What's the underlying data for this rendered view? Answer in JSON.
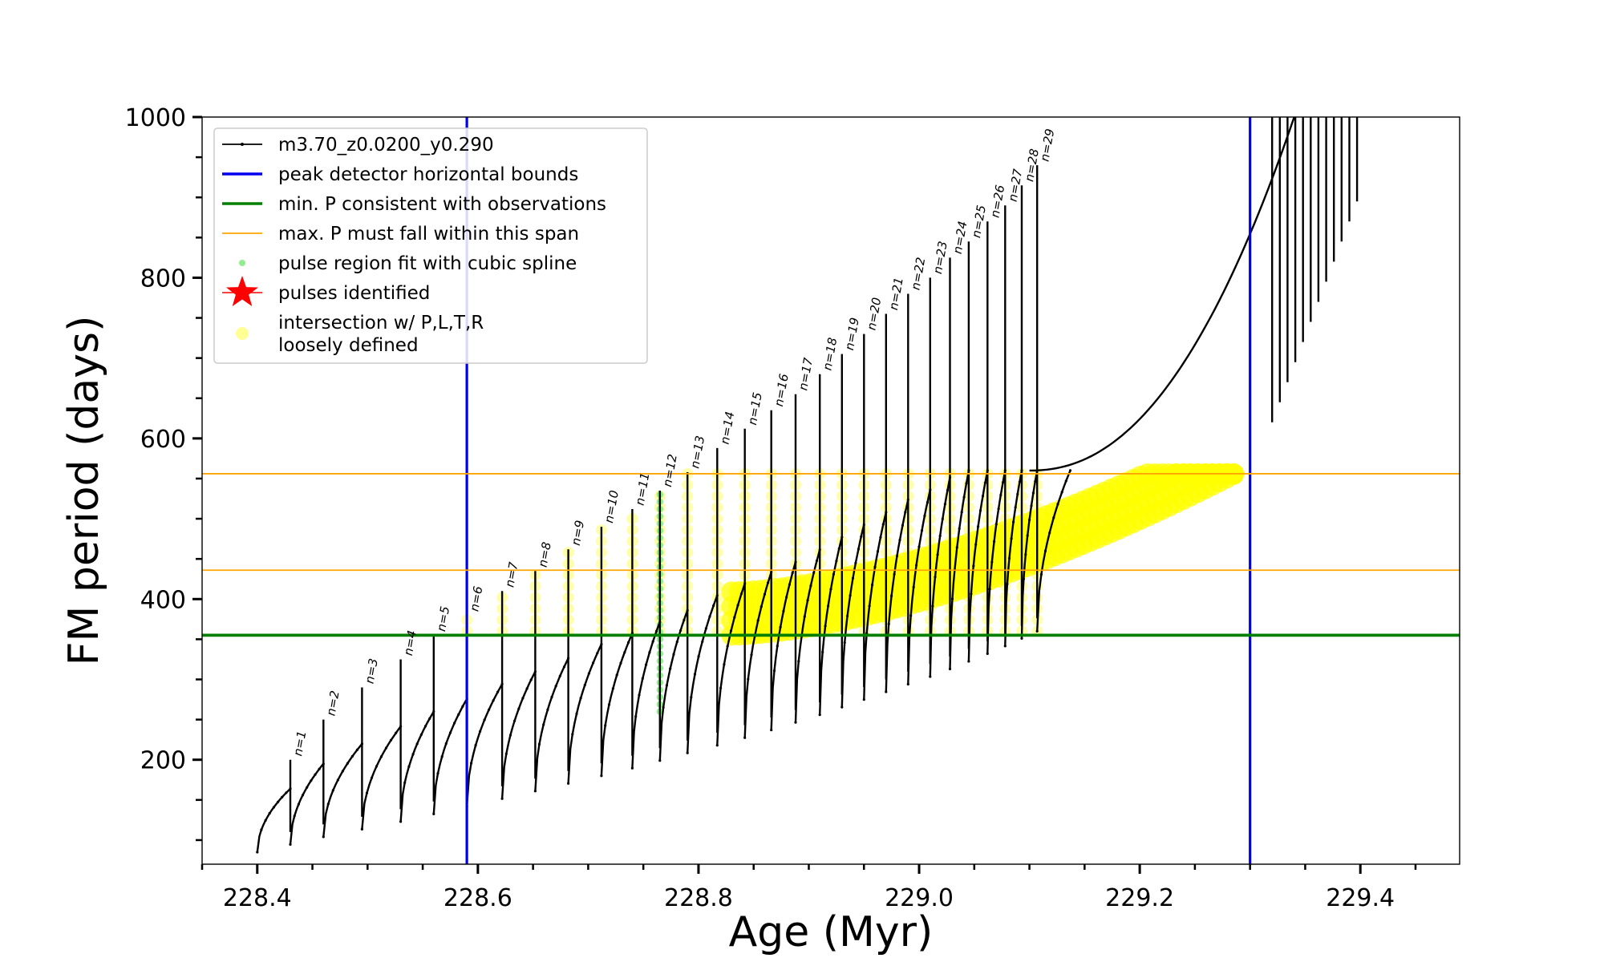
{
  "chart_data": {
    "type": "line",
    "title": "",
    "xlabel": "Age (Myr)",
    "ylabel": "FM period (days)",
    "xlim": [
      228.35,
      229.49
    ],
    "ylim": [
      70,
      1000
    ],
    "xticks": [
      228.4,
      228.6,
      228.8,
      229.0,
      229.2,
      229.4
    ],
    "xtick_labels": [
      "228.4",
      "228.6",
      "228.8",
      "229.0",
      "229.2",
      "229.4"
    ],
    "yticks": [
      200,
      400,
      600,
      800,
      1000
    ],
    "ytick_labels": [
      "200",
      "400",
      "600",
      "800",
      "1000"
    ],
    "grid": false,
    "legend": {
      "placement": "upper-left",
      "entries": [
        {
          "label": "m3.70_z0.0200_y0.290",
          "style": "black-line-dots",
          "color": "#000000"
        },
        {
          "label": "peak detector horizontal bounds",
          "style": "line",
          "color": "#0000ee"
        },
        {
          "label": "min. P consistent with observations",
          "style": "line",
          "color": "#007f00"
        },
        {
          "label": "max. P must fall within this span",
          "style": "thin-line",
          "color": "#ffa500"
        },
        {
          "label": "pulse region fit with cubic spline",
          "style": "dot",
          "color": "#90ee90"
        },
        {
          "label": "pulses identified",
          "style": "star",
          "color": "#ff0000"
        },
        {
          "label": "intersection w/ P,L,T,R",
          "label2": "loosely defined",
          "style": "circle",
          "color": "#ffff66"
        }
      ]
    },
    "vertical_bounds": [
      228.59,
      229.3
    ],
    "min_period": 355,
    "max_period_span": [
      436,
      556
    ],
    "series": [
      {
        "label_series": "m3.70_z0.0200_y0.290",
        "pulse_labels": [
          "n=1",
          "n=2",
          "n=3",
          "n=4",
          "n=5",
          "n=6",
          "n=7",
          "n=8",
          "n=9",
          "n=10",
          "n=11",
          "n=12",
          "n=13",
          "n=14",
          "n=15",
          "n=16",
          "n=17",
          "n=18",
          "n=19",
          "n=20",
          "n=21",
          "n=22",
          "n=23",
          "n=24",
          "n=25",
          "n=26",
          "n=27",
          "n=28",
          "n=29"
        ],
        "pulse_ages": [
          228.43,
          228.46,
          228.495,
          228.53,
          228.56,
          228.59,
          228.622,
          228.652,
          228.682,
          228.712,
          228.74,
          228.765,
          228.79,
          228.817,
          228.842,
          228.866,
          228.888,
          228.91,
          228.93,
          228.95,
          228.97,
          228.99,
          229.01,
          229.028,
          229.045,
          229.062,
          229.078,
          229.093,
          229.107
        ],
        "pulse_peaks": [
          200,
          250,
          290,
          325,
          355,
          380,
          410,
          435,
          462,
          490,
          512,
          535,
          558,
          588,
          612,
          635,
          655,
          680,
          705,
          730,
          755,
          780,
          800,
          825,
          845,
          870,
          890,
          915,
          940
        ]
      }
    ]
  }
}
